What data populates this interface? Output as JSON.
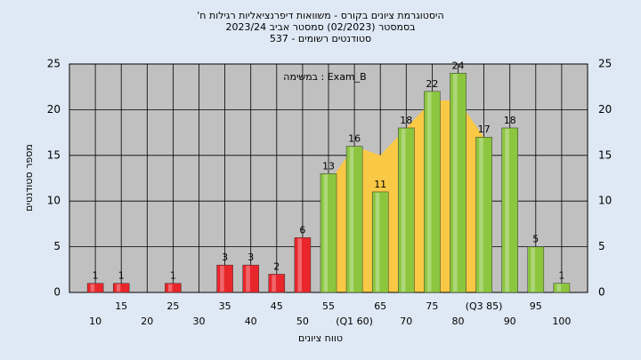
{
  "chart_data": {
    "type": "bar",
    "title": [
      "היסטוגרמת ציונים בקורס - משוואות דיפרנציאליות רגילות ח'",
      "בסמסטר (02/2023) סמסטר אביב 2023/24",
      "סטודנטים רשומים - 537"
    ],
    "annotation": "Exam_B : במשימה",
    "xlabel": "טווח ציונים",
    "ylabel": "מספר סטודנטים",
    "x": [
      10,
      15,
      20,
      25,
      30,
      35,
      40,
      45,
      50,
      55,
      60,
      65,
      70,
      75,
      80,
      85,
      90,
      95,
      100
    ],
    "values": [
      1,
      1,
      0,
      1,
      0,
      3,
      3,
      2,
      6,
      13,
      16,
      11,
      18,
      22,
      24,
      17,
      18,
      5,
      1
    ],
    "colors": [
      "#e8262b",
      "#e8262b",
      "#e8262b",
      "#e8262b",
      "#e8262b",
      "#e8262b",
      "#e8262b",
      "#e8262b",
      "#e8262b",
      "#8cc63f",
      "#8cc63f",
      "#8cc63f",
      "#8cc63f",
      "#8cc63f",
      "#8cc63f",
      "#8cc63f",
      "#8cc63f",
      "#8cc63f",
      "#8cc63f"
    ],
    "area": {
      "color": "#f9c945",
      "values": [
        null,
        null,
        null,
        null,
        null,
        null,
        null,
        null,
        null,
        12,
        16,
        15,
        18,
        21,
        21,
        17,
        null,
        null,
        null
      ]
    },
    "xlim": [
      5,
      105
    ],
    "xticks": [
      10,
      15,
      20,
      25,
      30,
      35,
      40,
      45,
      50,
      55,
      {
        "value": 60,
        "label": "(Q1 60)"
      },
      65,
      70,
      75,
      80,
      {
        "value": 85,
        "label": "(Q3 85)"
      },
      90,
      95,
      100
    ],
    "ylim": [
      0,
      25
    ],
    "yticks": [
      0,
      5,
      10,
      15,
      20,
      25
    ],
    "y2lim": [
      0,
      25
    ],
    "y2ticks": [
      0,
      5,
      10,
      15,
      20,
      25
    ],
    "grid": true
  }
}
